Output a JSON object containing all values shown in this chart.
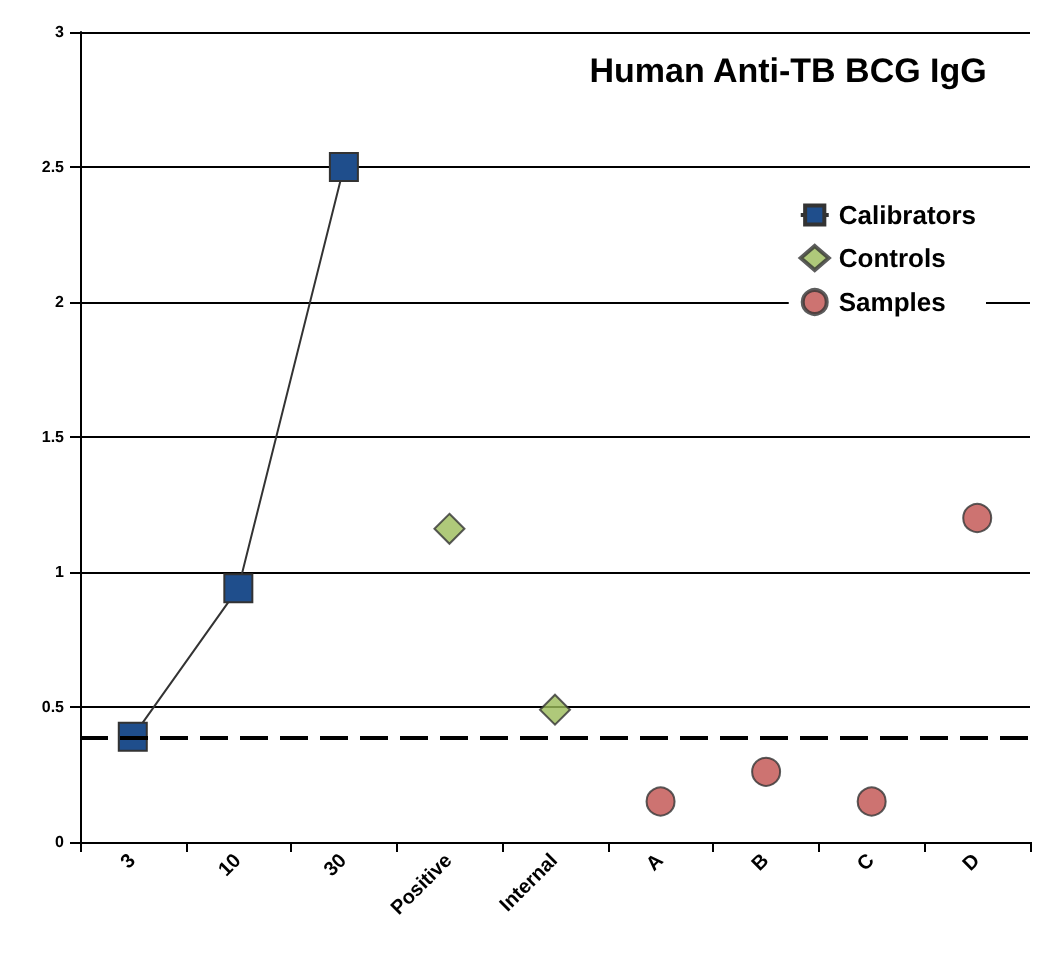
{
  "chart_data": {
    "type": "scatter",
    "title": "Human Anti-TB BCG IgG",
    "categories": [
      "3",
      "10",
      "30",
      "Positive",
      "Internal",
      "A",
      "B",
      "C",
      "D"
    ],
    "series": [
      {
        "name": "Calibrators",
        "type": "line",
        "marker": "square",
        "color": "#1f4e8c",
        "x": [
          "3",
          "10",
          "30"
        ],
        "values": [
          0.39,
          0.94,
          2.5
        ]
      },
      {
        "name": "Controls",
        "type": "scatter",
        "marker": "diamond",
        "color": "#9bbb59",
        "x": [
          "Positive",
          "Internal"
        ],
        "values": [
          1.16,
          0.49
        ]
      },
      {
        "name": "Samples",
        "type": "scatter",
        "marker": "circle",
        "color": "#c0504d",
        "x": [
          "A",
          "B",
          "C",
          "D"
        ],
        "values": [
          0.15,
          0.26,
          0.15,
          1.2
        ]
      }
    ],
    "ylim": [
      0,
      3
    ],
    "yticks": [
      0,
      0.5,
      1,
      1.5,
      2,
      2.5,
      3
    ],
    "grid": "y",
    "legend": "top right",
    "ref_lines": [
      {
        "axis": "y",
        "value": 0.39,
        "color": "#000000",
        "line_style": "dashed"
      }
    ]
  }
}
